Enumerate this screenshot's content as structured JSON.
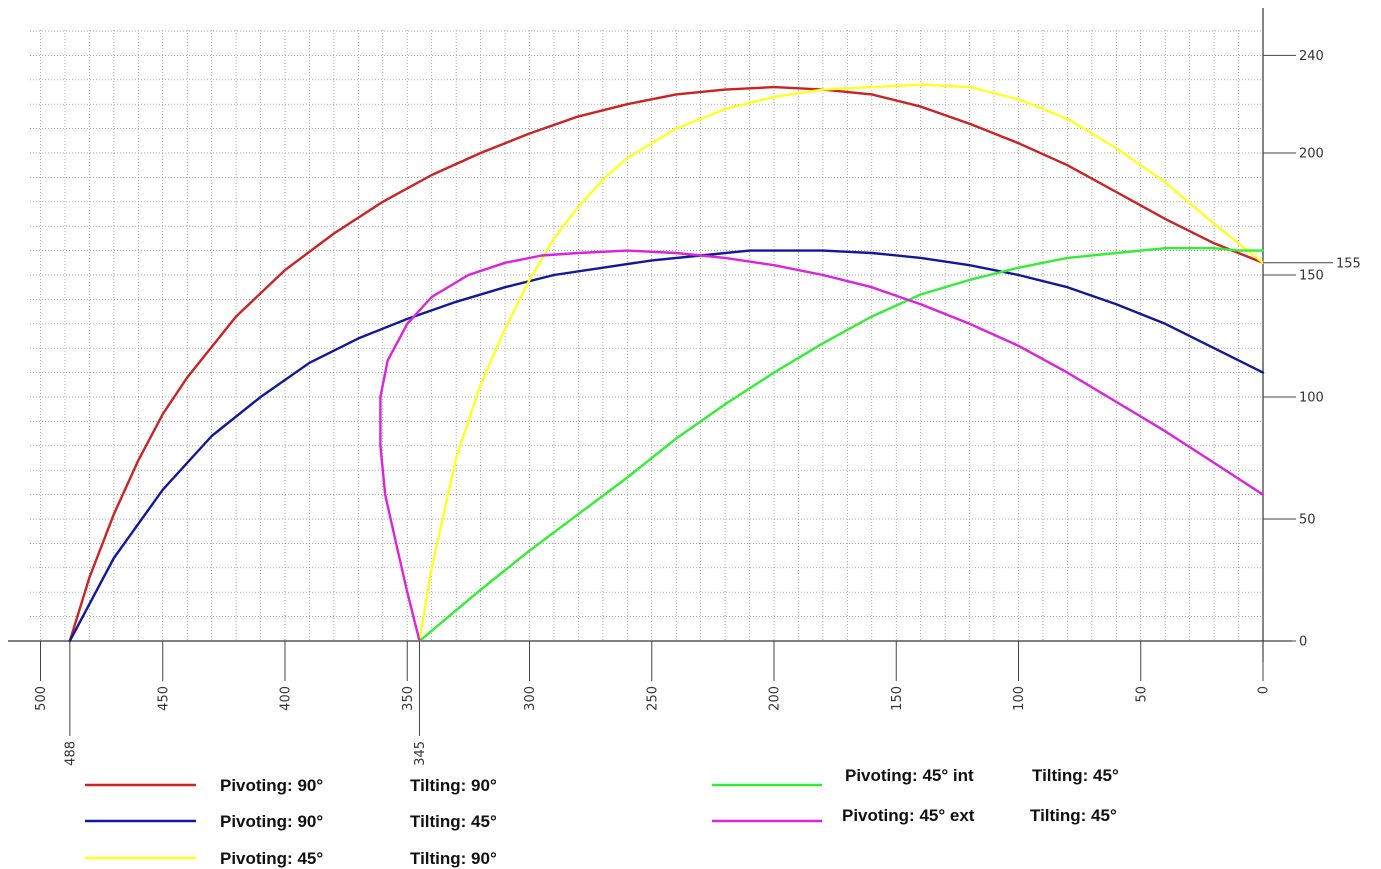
{
  "chart_data": {
    "type": "line",
    "title": "",
    "xlabel": "",
    "ylabel": "",
    "xlim": [
      505,
      0
    ],
    "ylim": [
      0,
      250
    ],
    "x_reversed": true,
    "grid": true,
    "y_axis_position": "right",
    "x_ticks": [
      500,
      488,
      450,
      400,
      350,
      345,
      300,
      250,
      200,
      150,
      100,
      50,
      0
    ],
    "y_ticks": [
      0,
      50,
      100,
      150,
      155,
      200,
      240
    ],
    "series": [
      {
        "key": "red",
        "color": "#cc2222",
        "points": [
          [
            488,
            0
          ],
          [
            480,
            26
          ],
          [
            470,
            52
          ],
          [
            460,
            74
          ],
          [
            450,
            93
          ],
          [
            440,
            108
          ],
          [
            420,
            133
          ],
          [
            400,
            152
          ],
          [
            380,
            167
          ],
          [
            360,
            180
          ],
          [
            340,
            191
          ],
          [
            320,
            200
          ],
          [
            300,
            208
          ],
          [
            280,
            215
          ],
          [
            260,
            220
          ],
          [
            240,
            224
          ],
          [
            220,
            226
          ],
          [
            200,
            227
          ],
          [
            180,
            226
          ],
          [
            160,
            224
          ],
          [
            140,
            219
          ],
          [
            120,
            212
          ],
          [
            100,
            204
          ],
          [
            80,
            195
          ],
          [
            60,
            184
          ],
          [
            40,
            173
          ],
          [
            20,
            163
          ],
          [
            0,
            155
          ]
        ]
      },
      {
        "key": "blue",
        "color": "#10189c",
        "points": [
          [
            488,
            0
          ],
          [
            470,
            34
          ],
          [
            450,
            62
          ],
          [
            430,
            84
          ],
          [
            410,
            100
          ],
          [
            390,
            114
          ],
          [
            370,
            124
          ],
          [
            350,
            132
          ],
          [
            330,
            139
          ],
          [
            310,
            145
          ],
          [
            290,
            150
          ],
          [
            270,
            153
          ],
          [
            250,
            156
          ],
          [
            230,
            158
          ],
          [
            210,
            160
          ],
          [
            200,
            160
          ],
          [
            180,
            160
          ],
          [
            160,
            159
          ],
          [
            140,
            157
          ],
          [
            120,
            154
          ],
          [
            100,
            150
          ],
          [
            80,
            145
          ],
          [
            60,
            138
          ],
          [
            40,
            130
          ],
          [
            20,
            120
          ],
          [
            0,
            110
          ]
        ]
      },
      {
        "key": "yellow",
        "color": "#ffff22",
        "points": [
          [
            345,
            0
          ],
          [
            340,
            30
          ],
          [
            330,
            75
          ],
          [
            320,
            105
          ],
          [
            310,
            128
          ],
          [
            300,
            148
          ],
          [
            290,
            165
          ],
          [
            280,
            178
          ],
          [
            270,
            189
          ],
          [
            260,
            198
          ],
          [
            250,
            204
          ],
          [
            240,
            210
          ],
          [
            220,
            218
          ],
          [
            200,
            223
          ],
          [
            180,
            226
          ],
          [
            160,
            227
          ],
          [
            140,
            228
          ],
          [
            120,
            227
          ],
          [
            100,
            222
          ],
          [
            80,
            214
          ],
          [
            60,
            202
          ],
          [
            40,
            188
          ],
          [
            20,
            171
          ],
          [
            0,
            155
          ]
        ]
      },
      {
        "key": "green",
        "color": "#33ee33",
        "points": [
          [
            345,
            0
          ],
          [
            320,
            21
          ],
          [
            300,
            37
          ],
          [
            280,
            52
          ],
          [
            260,
            67
          ],
          [
            240,
            83
          ],
          [
            220,
            97
          ],
          [
            200,
            110
          ],
          [
            180,
            122
          ],
          [
            160,
            133
          ],
          [
            140,
            142
          ],
          [
            120,
            148
          ],
          [
            100,
            153
          ],
          [
            80,
            157
          ],
          [
            60,
            159
          ],
          [
            40,
            161
          ],
          [
            30,
            161
          ],
          [
            20,
            161
          ],
          [
            10,
            160
          ],
          [
            0,
            160
          ]
        ]
      },
      {
        "key": "magenta",
        "color": "#dd22dd",
        "points": [
          [
            345,
            0
          ],
          [
            350,
            20
          ],
          [
            355,
            42
          ],
          [
            359,
            60
          ],
          [
            361,
            80
          ],
          [
            361,
            100
          ],
          [
            358,
            115
          ],
          [
            350,
            130
          ],
          [
            340,
            141
          ],
          [
            325,
            150
          ],
          [
            310,
            155
          ],
          [
            295,
            158
          ],
          [
            280,
            159
          ],
          [
            260,
            160
          ],
          [
            240,
            159
          ],
          [
            220,
            157
          ],
          [
            200,
            154
          ],
          [
            180,
            150
          ],
          [
            160,
            145
          ],
          [
            140,
            138
          ],
          [
            120,
            130
          ],
          [
            100,
            121
          ],
          [
            80,
            110
          ],
          [
            60,
            98
          ],
          [
            40,
            86
          ],
          [
            20,
            73
          ],
          [
            0,
            60
          ]
        ]
      }
    ]
  },
  "legend": {
    "entries": [
      {
        "color": "#cc2222",
        "pivoting": "Pivoting: 90°",
        "tilting": "Tilting: 90°"
      },
      {
        "color": "#10189c",
        "pivoting": "Pivoting: 90°",
        "tilting": "Tilting: 45°"
      },
      {
        "color": "#ffff22",
        "pivoting": "Pivoting: 45°",
        "tilting": "Tilting: 90°"
      },
      {
        "color": "#33ee33",
        "pivoting": "Pivoting: 45° int",
        "tilting": "Tilting: 45°"
      },
      {
        "color": "#dd22dd",
        "pivoting": "Pivoting: 45° ext",
        "tilting": "Tilting: 45°"
      }
    ]
  }
}
